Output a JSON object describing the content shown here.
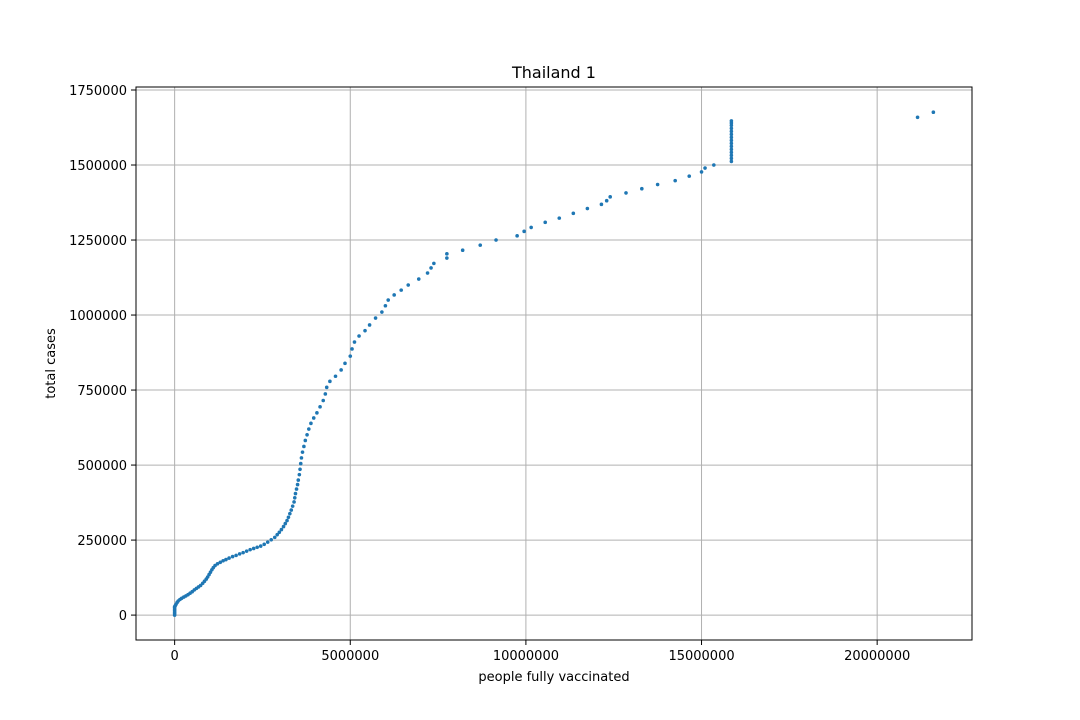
{
  "chart_data": {
    "type": "scatter",
    "title": "Thailand 1",
    "xlabel": "people fully vaccinated",
    "ylabel": "total cases",
    "xlim": [
      -1100000,
      22700000
    ],
    "ylim": [
      -83000,
      1760000
    ],
    "xticks": [
      0,
      5000000,
      10000000,
      15000000,
      20000000
    ],
    "yticks": [
      0,
      250000,
      500000,
      750000,
      1000000,
      1250000,
      1500000,
      1750000
    ],
    "grid": true,
    "marker_color": "#1f77b4",
    "series": [
      {
        "points": [
          [
            0,
            0
          ],
          [
            0,
            5000
          ],
          [
            0,
            10000
          ],
          [
            0,
            15000
          ],
          [
            0,
            20000
          ],
          [
            0,
            25000
          ],
          [
            0,
            28000
          ],
          [
            20000,
            32000
          ],
          [
            40000,
            36000
          ],
          [
            70000,
            42000
          ],
          [
            100000,
            47000
          ],
          [
            150000,
            52000
          ],
          [
            200000,
            56000
          ],
          [
            260000,
            60000
          ],
          [
            320000,
            64000
          ],
          [
            380000,
            68000
          ],
          [
            440000,
            73000
          ],
          [
            500000,
            78000
          ],
          [
            560000,
            84000
          ],
          [
            620000,
            89000
          ],
          [
            680000,
            94000
          ],
          [
            740000,
            99000
          ],
          [
            800000,
            106000
          ],
          [
            850000,
            113000
          ],
          [
            900000,
            120000
          ],
          [
            940000,
            127000
          ],
          [
            980000,
            135000
          ],
          [
            1020000,
            143000
          ],
          [
            1060000,
            151000
          ],
          [
            1100000,
            158000
          ],
          [
            1150000,
            165000
          ],
          [
            1220000,
            171000
          ],
          [
            1300000,
            176000
          ],
          [
            1380000,
            181000
          ],
          [
            1460000,
            185000
          ],
          [
            1550000,
            190000
          ],
          [
            1650000,
            195000
          ],
          [
            1750000,
            199000
          ],
          [
            1850000,
            204000
          ],
          [
            1950000,
            208000
          ],
          [
            2050000,
            213000
          ],
          [
            2150000,
            218000
          ],
          [
            2250000,
            222000
          ],
          [
            2350000,
            226000
          ],
          [
            2450000,
            230000
          ],
          [
            2550000,
            236000
          ],
          [
            2650000,
            243000
          ],
          [
            2750000,
            251000
          ],
          [
            2850000,
            259000
          ],
          [
            2920000,
            268000
          ],
          [
            2980000,
            276000
          ],
          [
            3040000,
            285000
          ],
          [
            3100000,
            295000
          ],
          [
            3150000,
            305000
          ],
          [
            3200000,
            315000
          ],
          [
            3240000,
            326000
          ],
          [
            3280000,
            338000
          ],
          [
            3320000,
            350000
          ],
          [
            3360000,
            363000
          ],
          [
            3400000,
            377000
          ],
          [
            3420000,
            391000
          ],
          [
            3440000,
            405000
          ],
          [
            3470000,
            420000
          ],
          [
            3500000,
            435000
          ],
          [
            3520000,
            450000
          ],
          [
            3550000,
            468000
          ],
          [
            3570000,
            486000
          ],
          [
            3590000,
            505000
          ],
          [
            3610000,
            524000
          ],
          [
            3640000,
            543000
          ],
          [
            3680000,
            562000
          ],
          [
            3720000,
            582000
          ],
          [
            3770000,
            601000
          ],
          [
            3820000,
            620000
          ],
          [
            3880000,
            639000
          ],
          [
            3960000,
            657000
          ],
          [
            4050000,
            674000
          ],
          [
            4140000,
            694000
          ],
          [
            4230000,
            715000
          ],
          [
            4290000,
            737000
          ],
          [
            4330000,
            759000
          ],
          [
            4420000,
            779000
          ],
          [
            4580000,
            796000
          ],
          [
            4740000,
            817000
          ],
          [
            4850000,
            839000
          ],
          [
            5000000,
            863000
          ],
          [
            5050000,
            887000
          ],
          [
            5120000,
            910000
          ],
          [
            5250000,
            930000
          ],
          [
            5420000,
            948000
          ],
          [
            5550000,
            967000
          ],
          [
            5720000,
            990000
          ],
          [
            5900000,
            1010000
          ],
          [
            6000000,
            1031000
          ],
          [
            6080000,
            1050000
          ],
          [
            6250000,
            1067000
          ],
          [
            6450000,
            1083000
          ],
          [
            6650000,
            1100000
          ],
          [
            6950000,
            1120000
          ],
          [
            7200000,
            1140000
          ],
          [
            7300000,
            1157000
          ],
          [
            7380000,
            1172000
          ],
          [
            7750000,
            1190000
          ],
          [
            7750000,
            1204000
          ],
          [
            8200000,
            1216000
          ],
          [
            8700000,
            1233000
          ],
          [
            9150000,
            1250000
          ],
          [
            9750000,
            1264000
          ],
          [
            9950000,
            1279000
          ],
          [
            10150000,
            1292000
          ],
          [
            10550000,
            1309000
          ],
          [
            10950000,
            1323000
          ],
          [
            11350000,
            1339000
          ],
          [
            11750000,
            1355000
          ],
          [
            12150000,
            1369000
          ],
          [
            12300000,
            1381000
          ],
          [
            12400000,
            1394000
          ],
          [
            12850000,
            1407000
          ],
          [
            13300000,
            1421000
          ],
          [
            13750000,
            1435000
          ],
          [
            14250000,
            1448000
          ],
          [
            14650000,
            1463000
          ],
          [
            15000000,
            1477000
          ],
          [
            15100000,
            1490000
          ],
          [
            15350000,
            1500000
          ],
          [
            15850000,
            1512000
          ],
          [
            15850000,
            1522000
          ],
          [
            15850000,
            1532000
          ],
          [
            15850000,
            1542000
          ],
          [
            15850000,
            1552000
          ],
          [
            15850000,
            1562000
          ],
          [
            15850000,
            1572000
          ],
          [
            15850000,
            1582000
          ],
          [
            15850000,
            1592000
          ],
          [
            15850000,
            1602000
          ],
          [
            15850000,
            1612000
          ],
          [
            15850000,
            1622000
          ],
          [
            15850000,
            1632000
          ],
          [
            15850000,
            1640000
          ],
          [
            15850000,
            1647000
          ],
          [
            21150000,
            1659000
          ],
          [
            21600000,
            1676000
          ]
        ]
      }
    ]
  }
}
